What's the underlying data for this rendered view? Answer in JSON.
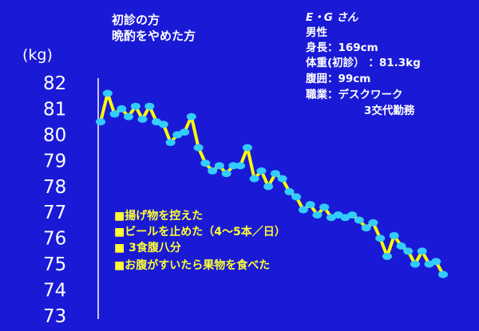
{
  "title_lines": [
    "初診の方",
    "晩酌をやめた方"
  ],
  "unit_label": "(kg)",
  "profile": {
    "name": "E・G さん",
    "sex": "男性",
    "height": "身長：169cm",
    "weight": "体重(初診） ：81.3kg",
    "waist": "腹囲：99cm",
    "job": "職業：デスクワーク",
    "job2": "3交代勤務"
  },
  "notes": [
    "■揚げ物を控えた",
    "■ビールを止めた（4～5本／日）",
    "■ 3食腹八分",
    "■お腹がすいたら果物を食べた"
  ],
  "colors": {
    "background": "#1a1ad6",
    "line": "#ffff00",
    "marker": "#33ccff",
    "text": "#ffffff",
    "note_text": "#ffff33"
  },
  "chart_data": {
    "type": "line",
    "title": "",
    "xlabel": "",
    "ylabel": "(kg)",
    "ylim": [
      73,
      82
    ],
    "yticks": [
      82,
      81,
      80,
      79,
      78,
      77,
      76,
      75,
      74,
      73
    ],
    "grid": false,
    "series": [
      {
        "values": [
          80.5,
          81.6,
          80.8,
          81.0,
          80.7,
          81.1,
          80.6,
          81.1,
          80.5,
          80.4,
          79.7,
          80.0,
          80.1,
          80.7,
          79.5,
          78.9,
          78.6,
          78.8,
          78.5,
          78.8,
          78.8,
          79.5,
          78.3,
          78.6,
          78.0,
          78.5,
          78.3,
          77.8,
          77.6,
          77.1,
          77.3,
          76.9,
          77.2,
          76.8,
          76.9,
          76.8,
          76.9,
          76.7,
          76.4,
          76.6,
          76.0,
          75.3,
          76.1,
          75.7,
          75.5,
          75.0,
          75.5,
          75.0,
          75.1,
          74.6
        ]
      }
    ]
  }
}
